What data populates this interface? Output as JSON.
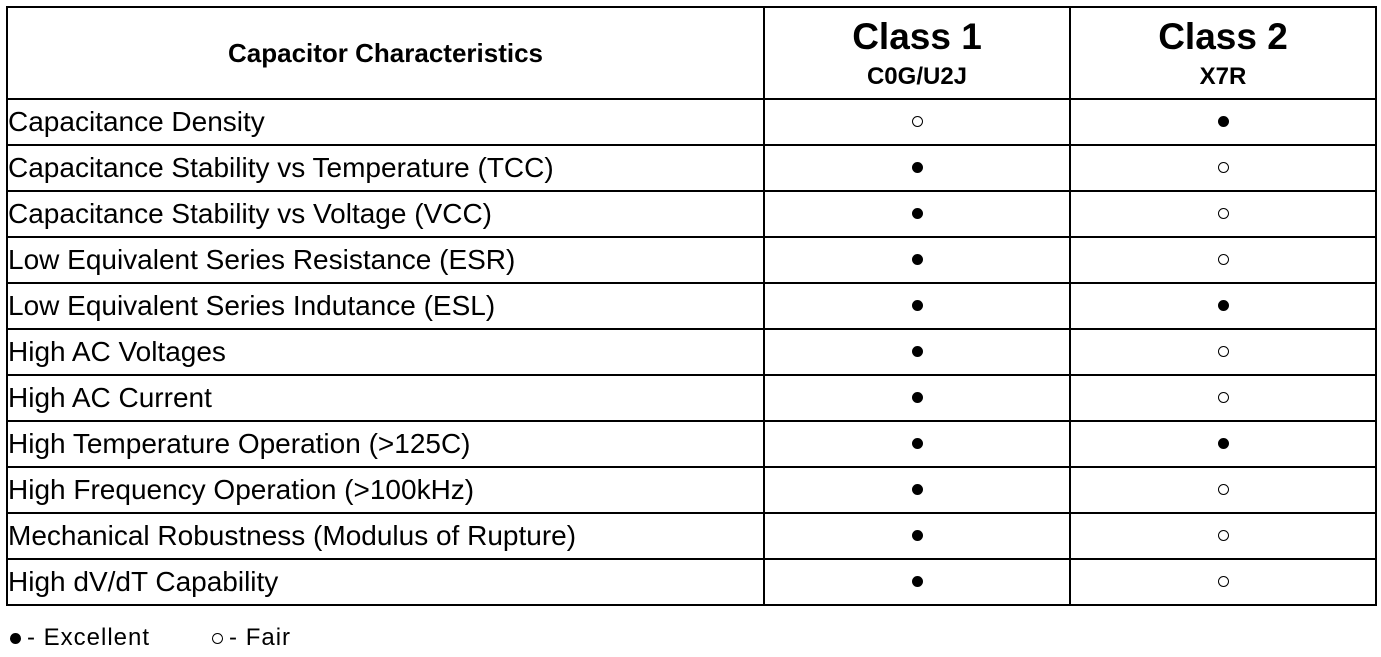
{
  "table": {
    "header": {
      "characteristics": "Capacitor Characteristics",
      "class1": {
        "title": "Class 1",
        "subtitle": "C0G/U2J"
      },
      "class2": {
        "title": "Class 2",
        "subtitle": "X7R"
      }
    },
    "rows": [
      {
        "name": "Capacitance Density",
        "class1": "fair",
        "class2": "excellent"
      },
      {
        "name": "Capacitance Stability vs Temperature (TCC)",
        "class1": "excellent",
        "class2": "fair"
      },
      {
        "name": "Capacitance Stability vs Voltage (VCC)",
        "class1": "excellent",
        "class2": "fair"
      },
      {
        "name": "Low Equivalent Series Resistance (ESR)",
        "class1": "excellent",
        "class2": "fair"
      },
      {
        "name": "Low Equivalent Series Indutance (ESL)",
        "class1": "excellent",
        "class2": "excellent"
      },
      {
        "name": "High AC Voltages",
        "class1": "excellent",
        "class2": "fair"
      },
      {
        "name": "High AC Current",
        "class1": "excellent",
        "class2": "fair"
      },
      {
        "name": "High Temperature Operation (>125C)",
        "class1": "excellent",
        "class2": "excellent"
      },
      {
        "name": "High Frequency Operation (>100kHz)",
        "class1": "excellent",
        "class2": "fair"
      },
      {
        "name": "Mechanical Robustness (Modulus of Rupture)",
        "class1": "excellent",
        "class2": "fair"
      },
      {
        "name": "High dV/dT Capability",
        "class1": "excellent",
        "class2": "fair"
      }
    ]
  },
  "legend": {
    "excellent": "- Excellent",
    "fair": "- Fair"
  },
  "icons": {
    "excellent": "filled-circle-icon",
    "fair": "hollow-circle-icon"
  }
}
